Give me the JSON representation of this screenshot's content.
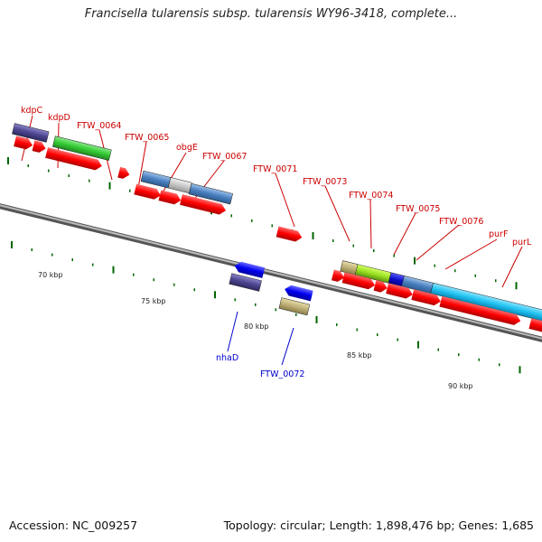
{
  "title": "Francisella tularensis subsp. tularensis WY96-3418, complete...",
  "footer": {
    "accession": "Accession: NC_009257",
    "topology": "Topology: circular; Length: 1,898,476 bp; Genes: 1,685"
  },
  "scale_labels": [
    "70 kbp",
    "75 kbp",
    "80 kbp",
    "85 kbp",
    "90 kbp"
  ],
  "colors": {
    "forward_label": "#cc0000",
    "reverse_label": "#0000cc",
    "cds": "#ff0000",
    "tick": "#006600",
    "backbone": "#888888"
  },
  "gene_labels": {
    "kdpC": "kdpC",
    "kdpD": "kdpD",
    "FTW_0064": "FTW_0064",
    "FTW_0065": "FTW_0065",
    "obgE": "obgE",
    "FTW_0067": "FTW_0067",
    "FTW_0071": "FTW_0071",
    "FTW_0073": "FTW_0073",
    "FTW_0074": "FTW_0074",
    "FTW_0075": "FTW_0075",
    "FTW_0076": "FTW_0076",
    "purF": "purF",
    "purL": "purL",
    "nhaD": "nhaD",
    "FTW_0072": "FTW_0072"
  }
}
